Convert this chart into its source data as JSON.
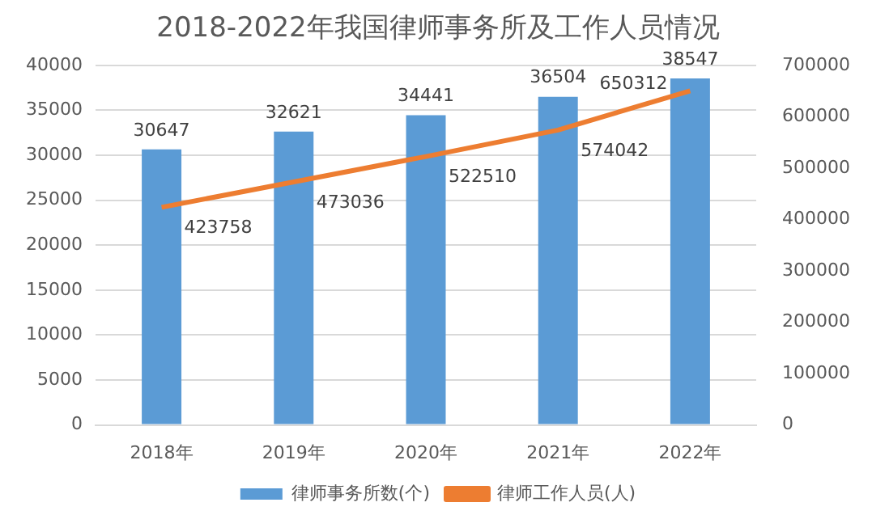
{
  "chart_data": {
    "type": "bar",
    "title": "2018-2022年我国律师事务所及工作人员情况",
    "categories": [
      "2018年",
      "2019年",
      "2020年",
      "2021年",
      "2022年"
    ],
    "series": [
      {
        "name": "律师事务所数(个)",
        "color": "#5b9bd5",
        "values": [
          30647,
          32621,
          34441,
          36504,
          38547
        ]
      },
      {
        "name": "律师工作人员(人)",
        "type": "line",
        "axis": "y2",
        "color": "#ed7d31",
        "values": [
          423758,
          473036,
          522510,
          574042,
          650312
        ]
      }
    ],
    "ylim": [
      0,
      40000
    ],
    "yticks": [
      0,
      5000,
      10000,
      15000,
      20000,
      25000,
      30000,
      35000,
      40000
    ],
    "y2lim": [
      0,
      700000
    ],
    "y2ticks": [
      0,
      100000,
      200000,
      300000,
      400000,
      500000,
      600000,
      700000
    ],
    "grid": "y",
    "legend": "bottom",
    "data_labels": true,
    "marker": "none"
  }
}
